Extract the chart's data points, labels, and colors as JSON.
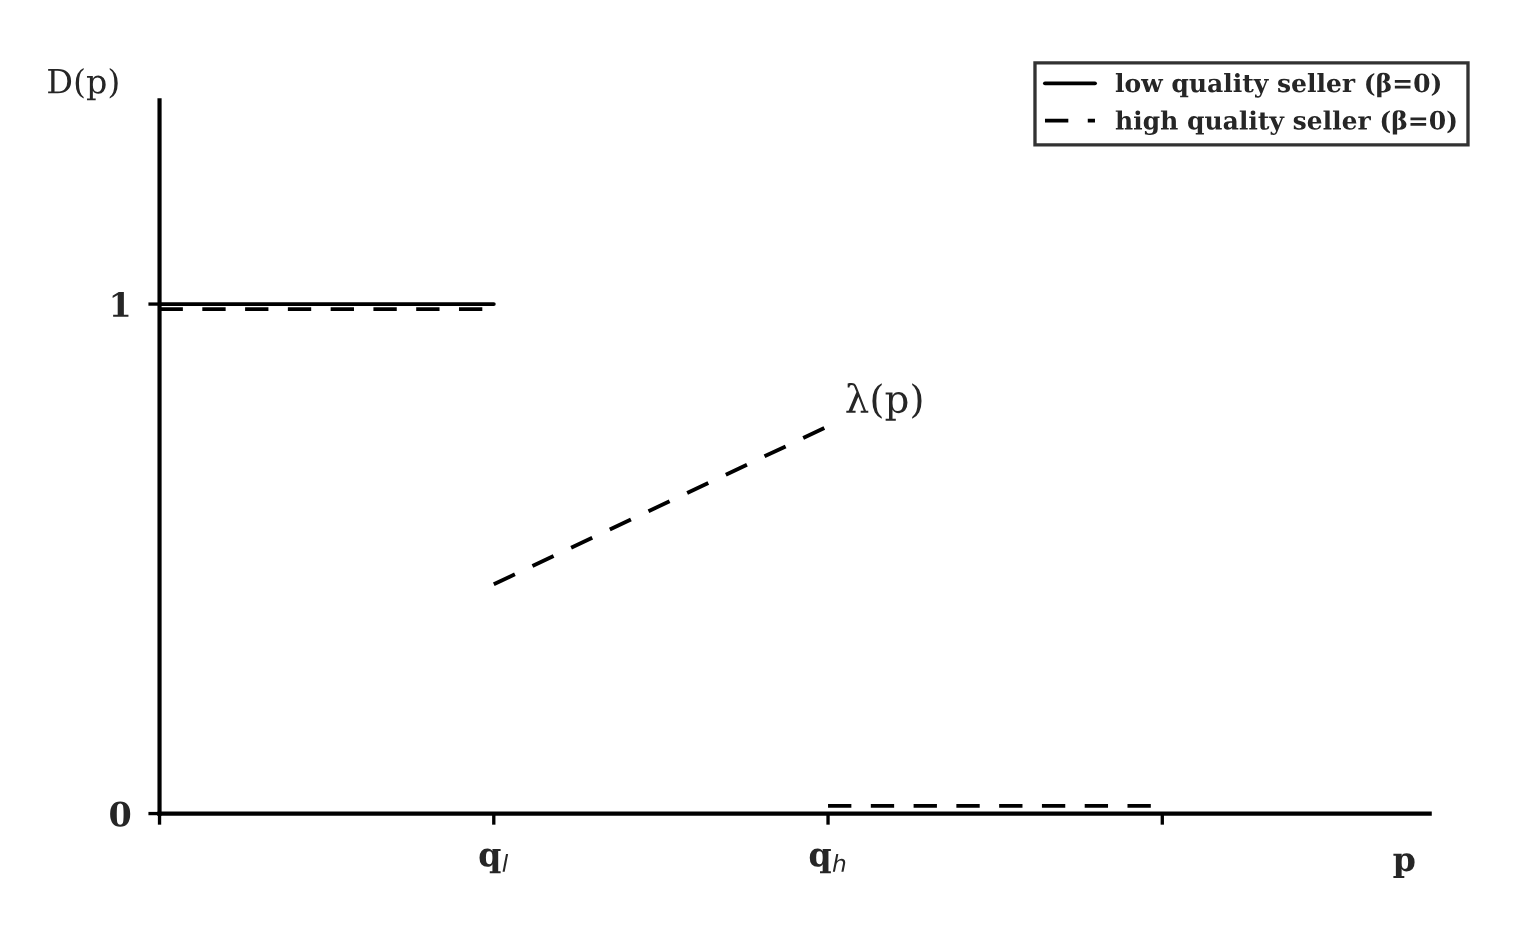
{
  "chart_data": {
    "type": "line",
    "xlabel": "p",
    "ylabel": "D(p)",
    "categories": [
      null,
      "q$_{l}$",
      "q$_{h}$",
      null
    ],
    "ylim": [
      0,
      1.4
    ],
    "yticks": [
      0,
      1
    ],
    "series": [
      {
        "name": "low quality seller (β=0)",
        "color": "#000000",
        "line_style": "solid",
        "values": [
          1,
          1,
          null,
          null
        ]
      },
      {
        "name": "high quality seller (β=0)",
        "color": "#000000",
        "line_style": "dashed",
        "values": [
          0.99,
          0.99,
          null,
          null
        ]
      },
      {
        "color": "#000000",
        "line_style": "dashed",
        "values": [
          null,
          0.45,
          0.76,
          null
        ]
      },
      {
        "color": "#000000",
        "line_style": "dashed",
        "values": [
          null,
          null,
          0.015,
          0.015
        ]
      }
    ],
    "annotations": [
      {
        "text": "λ(p)",
        "x": "q$_{h}$",
        "y": 0.76
      }
    ],
    "legend": "top right",
    "grid": false
  }
}
